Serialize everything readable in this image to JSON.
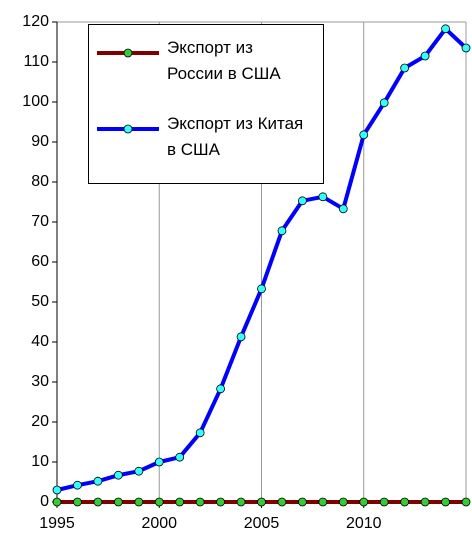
{
  "chart_data": {
    "type": "line",
    "x": [
      1995,
      1996,
      1997,
      1998,
      1999,
      2000,
      2001,
      2002,
      2003,
      2004,
      2005,
      2006,
      2007,
      2008,
      2009,
      2010,
      2011,
      2012,
      2013,
      2014,
      2015
    ],
    "series": [
      {
        "name": "Экспорт из России в США",
        "color": "#800000",
        "marker_color": "#33cc33",
        "values": [
          0,
          0,
          0,
          0,
          0,
          0,
          0,
          0,
          0,
          0,
          0,
          0,
          0,
          0,
          0,
          0,
          0,
          0,
          0,
          0,
          0
        ]
      },
      {
        "name": "Экспорт из Китая в США",
        "color": "#0000ff",
        "marker_color": "#33ffff",
        "values": [
          3,
          4.2,
          5.2,
          6.7,
          7.7,
          10,
          11.2,
          17.3,
          28.3,
          41.3,
          53.3,
          67.8,
          75.3,
          76.3,
          73.3,
          91.8,
          99.8,
          108.5,
          111.5,
          118.3,
          113.5
        ]
      }
    ],
    "xlim": [
      1995,
      2015
    ],
    "xticks": [
      1995,
      2000,
      2005,
      2010
    ],
    "ylim": [
      0,
      120
    ],
    "yticks": [
      0,
      10,
      20,
      30,
      40,
      50,
      60,
      70,
      80,
      90,
      100,
      110,
      120
    ],
    "grid": "x",
    "legend": "upper left"
  }
}
